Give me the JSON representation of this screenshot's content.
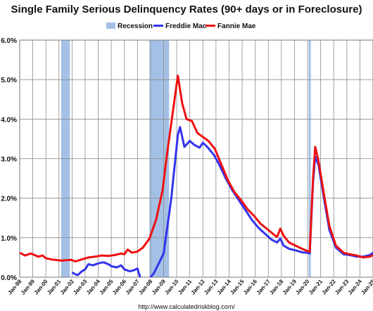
{
  "chart_data": {
    "type": "line",
    "title": "Single Family Serious Delinquency Rates (90+ days or in Foreclosure)",
    "source_url": "http://www.calculatedriskblog.com/",
    "legend_position": "top",
    "grid": true,
    "x_domain": [
      "1998-01",
      "2025-01"
    ],
    "ylim": [
      0,
      6
    ],
    "ytick_values": [
      0,
      1,
      2,
      3,
      4,
      5,
      6
    ],
    "ytick_labels": [
      "0.0%",
      "1.0%",
      "2.0%",
      "3.0%",
      "4.0%",
      "5.0%",
      "6.0%"
    ],
    "xtick_labels": [
      "Jan-98",
      "Jan-99",
      "Jan-00",
      "Jan-01",
      "Jan-02",
      "Jan-03",
      "Jan-04",
      "Jan-05",
      "Jan-06",
      "Jan-07",
      "Jan-08",
      "Jan-09",
      "Jan-10",
      "Jan-11",
      "Jan-12",
      "Jan-13",
      "Jan-14",
      "Jan-15",
      "Jan-16",
      "Jan-17",
      "Jan-18",
      "Jan-19",
      "Jan-20",
      "Jan-21",
      "Jan-22",
      "Jan-23",
      "Jan-24",
      "Jan-25"
    ],
    "recession_label": "Recession",
    "recessions": [
      [
        "2001-03",
        "2001-11"
      ],
      [
        "2007-12",
        "2009-06"
      ],
      [
        "2020-02",
        "2020-04"
      ]
    ],
    "series": [
      {
        "name": "Freddie Mac",
        "color": "#3333ee",
        "points": [
          [
            "2002-01",
            0.12
          ],
          [
            "2002-06",
            0.05
          ],
          [
            "2002-10",
            0.15
          ],
          [
            "2003-01",
            0.2
          ],
          [
            "2003-04",
            0.33
          ],
          [
            "2003-08",
            0.3
          ],
          [
            "2004-01",
            0.35
          ],
          [
            "2004-06",
            0.38
          ],
          [
            "2004-11",
            0.32
          ],
          [
            "2005-01",
            0.28
          ],
          [
            "2005-06",
            0.25
          ],
          [
            "2005-10",
            0.3
          ],
          [
            "2006-01",
            0.2
          ],
          [
            "2006-06",
            0.15
          ],
          [
            "2006-10",
            0.18
          ],
          [
            "2007-01",
            0.22
          ],
          [
            "2007-04",
            -0.05
          ],
          [
            "2007-08",
            -0.13
          ],
          [
            "2007-12",
            -0.03
          ],
          [
            "2008-04",
            0.1
          ],
          [
            "2008-08",
            0.32
          ],
          [
            "2009-01",
            0.6
          ],
          [
            "2009-04",
            1.2
          ],
          [
            "2009-08",
            2.0
          ],
          [
            "2009-11",
            2.8
          ],
          [
            "2010-02",
            3.6
          ],
          [
            "2010-04",
            3.8
          ],
          [
            "2010-08",
            3.3
          ],
          [
            "2011-01",
            3.45
          ],
          [
            "2011-05",
            3.35
          ],
          [
            "2011-10",
            3.28
          ],
          [
            "2012-01",
            3.4
          ],
          [
            "2012-05",
            3.3
          ],
          [
            "2012-11",
            3.1
          ],
          [
            "2013-04",
            2.85
          ],
          [
            "2013-10",
            2.5
          ],
          [
            "2014-04",
            2.2
          ],
          [
            "2014-10",
            1.95
          ],
          [
            "2015-04",
            1.7
          ],
          [
            "2015-10",
            1.45
          ],
          [
            "2016-04",
            1.25
          ],
          [
            "2016-10",
            1.1
          ],
          [
            "2017-04",
            0.95
          ],
          [
            "2017-09",
            0.88
          ],
          [
            "2017-12",
            0.98
          ],
          [
            "2018-03",
            0.8
          ],
          [
            "2018-08",
            0.72
          ],
          [
            "2019-02",
            0.68
          ],
          [
            "2019-08",
            0.63
          ],
          [
            "2020-01",
            0.62
          ],
          [
            "2020-03",
            0.6
          ],
          [
            "2020-06",
            2.4
          ],
          [
            "2020-08",
            3.05
          ],
          [
            "2020-11",
            2.85
          ],
          [
            "2021-04",
            2.0
          ],
          [
            "2021-09",
            1.2
          ],
          [
            "2022-03",
            0.75
          ],
          [
            "2022-10",
            0.58
          ],
          [
            "2023-04",
            0.56
          ],
          [
            "2023-10",
            0.52
          ],
          [
            "2024-04",
            0.52
          ],
          [
            "2024-10",
            0.56
          ],
          [
            "2025-01",
            0.62
          ]
        ]
      },
      {
        "name": "Fannie Mae",
        "color": "#ee1111",
        "points": [
          [
            "1998-01",
            0.62
          ],
          [
            "1998-06",
            0.55
          ],
          [
            "1998-11",
            0.6
          ],
          [
            "1999-01",
            0.58
          ],
          [
            "1999-06",
            0.52
          ],
          [
            "1999-10",
            0.55
          ],
          [
            "2000-01",
            0.48
          ],
          [
            "2000-06",
            0.45
          ],
          [
            "2000-12",
            0.43
          ],
          [
            "2001-03",
            0.42
          ],
          [
            "2001-08",
            0.43
          ],
          [
            "2001-12",
            0.44
          ],
          [
            "2002-04",
            0.4
          ],
          [
            "2002-10",
            0.45
          ],
          [
            "2003-04",
            0.5
          ],
          [
            "2003-10",
            0.52
          ],
          [
            "2004-04",
            0.55
          ],
          [
            "2004-10",
            0.54
          ],
          [
            "2005-04",
            0.56
          ],
          [
            "2005-10",
            0.6
          ],
          [
            "2006-01",
            0.58
          ],
          [
            "2006-04",
            0.7
          ],
          [
            "2006-08",
            0.62
          ],
          [
            "2007-01",
            0.65
          ],
          [
            "2007-06",
            0.75
          ],
          [
            "2007-12",
            0.98
          ],
          [
            "2008-06",
            1.45
          ],
          [
            "2008-12",
            2.2
          ],
          [
            "2009-04",
            3.1
          ],
          [
            "2009-08",
            3.9
          ],
          [
            "2009-12",
            4.7
          ],
          [
            "2010-02",
            5.1
          ],
          [
            "2010-06",
            4.4
          ],
          [
            "2010-10",
            4.0
          ],
          [
            "2011-03",
            3.95
          ],
          [
            "2011-08",
            3.65
          ],
          [
            "2012-01",
            3.55
          ],
          [
            "2012-06",
            3.45
          ],
          [
            "2012-12",
            3.25
          ],
          [
            "2013-06",
            2.85
          ],
          [
            "2013-12",
            2.45
          ],
          [
            "2014-06",
            2.15
          ],
          [
            "2014-12",
            1.95
          ],
          [
            "2015-06",
            1.72
          ],
          [
            "2015-12",
            1.55
          ],
          [
            "2016-06",
            1.35
          ],
          [
            "2016-12",
            1.22
          ],
          [
            "2017-06",
            1.08
          ],
          [
            "2017-09",
            1.02
          ],
          [
            "2017-12",
            1.23
          ],
          [
            "2018-03",
            1.05
          ],
          [
            "2018-08",
            0.88
          ],
          [
            "2019-02",
            0.8
          ],
          [
            "2019-08",
            0.72
          ],
          [
            "2020-01",
            0.66
          ],
          [
            "2020-03",
            0.65
          ],
          [
            "2020-06",
            2.5
          ],
          [
            "2020-08",
            3.3
          ],
          [
            "2020-11",
            2.95
          ],
          [
            "2021-04",
            2.1
          ],
          [
            "2021-09",
            1.3
          ],
          [
            "2022-03",
            0.8
          ],
          [
            "2022-10",
            0.62
          ],
          [
            "2023-04",
            0.58
          ],
          [
            "2023-10",
            0.55
          ],
          [
            "2024-04",
            0.5
          ],
          [
            "2024-10",
            0.52
          ],
          [
            "2025-01",
            0.56
          ]
        ]
      }
    ]
  }
}
